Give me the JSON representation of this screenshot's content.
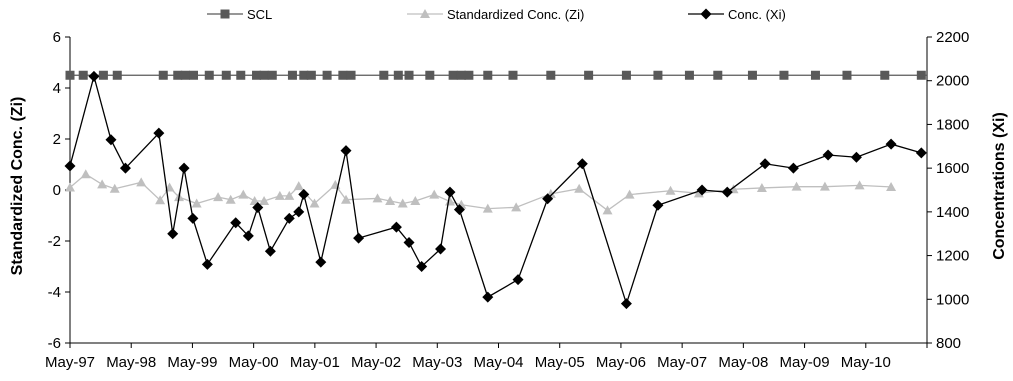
{
  "chart_data": {
    "type": "line",
    "legend_position": "top",
    "grid": false,
    "xlabel": "",
    "ylabel": "Standardized Conc. (Zi)",
    "y2label": "Concentrations (Xi)",
    "ylim": [
      -6,
      6
    ],
    "y2lim": [
      800,
      2200
    ],
    "x_ticks": [
      "May-97",
      "May-98",
      "May-99",
      "May-00",
      "May-01",
      "May-02",
      "May-03",
      "May-04",
      "May-05",
      "May-06",
      "May-07",
      "May-08",
      "May-09",
      "May-10"
    ],
    "y_ticks": [
      -6,
      -4,
      -2,
      0,
      2,
      4,
      6
    ],
    "y2_ticks": [
      800,
      1000,
      1200,
      1400,
      1600,
      1800,
      2000,
      2200
    ],
    "x_start": 1997.37,
    "x_end": 2010.97,
    "series": [
      {
        "name": "SCL",
        "axis": "left",
        "color": "#595959",
        "marker": "square",
        "x": [
          1997.37,
          1997.58,
          1997.9,
          1998.12,
          1998.85,
          1999.08,
          1999.2,
          1999.33,
          1999.58,
          1999.85,
          2000.08,
          2000.33,
          2000.45,
          2000.58,
          2000.9,
          2001.08,
          2001.2,
          2001.45,
          2001.7,
          2001.83,
          2002.35,
          2002.58,
          2002.75,
          2003.08,
          2003.45,
          2003.58,
          2003.7,
          2004.0,
          2004.4,
          2005.0,
          2005.6,
          2006.2,
          2006.7,
          2007.2,
          2007.65,
          2008.2,
          2008.7,
          2009.2,
          2009.7,
          2010.3,
          2010.88
        ],
        "y": [
          4.5,
          4.5,
          4.5,
          4.5,
          4.5,
          4.5,
          4.5,
          4.5,
          4.5,
          4.5,
          4.5,
          4.5,
          4.5,
          4.5,
          4.5,
          4.5,
          4.5,
          4.5,
          4.5,
          4.5,
          4.5,
          4.5,
          4.5,
          4.5,
          4.5,
          4.5,
          4.5,
          4.5,
          4.5,
          4.5,
          4.5,
          4.5,
          4.5,
          4.5,
          4.5,
          4.5,
          4.5,
          4.5,
          4.5,
          4.5,
          4.5
        ]
      },
      {
        "name": "Standardized Conc. (Zi)",
        "axis": "left",
        "color": "#bfbfbf",
        "marker": "triangle",
        "x": [
          1997.37,
          1997.62,
          1997.88,
          1998.08,
          1998.5,
          1998.8,
          1998.95,
          1999.1,
          1999.38,
          1999.72,
          1999.92,
          2000.12,
          2000.3,
          2000.45,
          2000.7,
          2000.85,
          2001.0,
          2001.25,
          2001.58,
          2001.75,
          2002.25,
          2002.45,
          2002.65,
          2002.85,
          2003.15,
          2003.4,
          2003.58,
          2004.0,
          2004.45,
          2005.0,
          2005.45,
          2005.9,
          2006.25,
          2006.9,
          2007.35,
          2007.9,
          2008.35,
          2008.9,
          2009.35,
          2009.9,
          2010.4
        ],
        "y": [
          0.1,
          0.62,
          0.22,
          0.05,
          0.3,
          -0.4,
          0.1,
          -0.28,
          -0.53,
          -0.28,
          -0.38,
          -0.18,
          -0.43,
          -0.43,
          -0.23,
          -0.23,
          0.15,
          -0.53,
          0.2,
          -0.38,
          -0.33,
          -0.43,
          -0.53,
          -0.43,
          -0.18,
          -0.45,
          -0.58,
          -0.73,
          -0.68,
          -0.15,
          0.05,
          -0.8,
          -0.18,
          -0.03,
          -0.13,
          0.03,
          0.08,
          0.13,
          0.13,
          0.18,
          0.12
        ]
      },
      {
        "name": "Conc. (Xi)",
        "axis": "right",
        "color": "#000000",
        "marker": "diamond",
        "x": [
          1997.37,
          1997.75,
          1998.02,
          1998.25,
          1998.78,
          1999.0,
          1999.18,
          1999.32,
          1999.55,
          2000.0,
          2000.2,
          2000.35,
          2000.55,
          2000.85,
          2001.0,
          2001.08,
          2001.35,
          2001.75,
          2001.95,
          2002.55,
          2002.75,
          2002.95,
          2003.25,
          2003.4,
          2003.55,
          2004.0,
          2004.48,
          2004.95,
          2005.5,
          2006.2,
          2006.7,
          2007.4,
          2007.8,
          2008.4,
          2008.85,
          2009.4,
          2009.85,
          2010.4,
          2010.88
        ],
        "y": [
          1610,
          2020,
          1730,
          1600,
          1760,
          1300,
          1600,
          1370,
          1160,
          1350,
          1290,
          1420,
          1220,
          1370,
          1400,
          1480,
          1170,
          1680,
          1280,
          1330,
          1260,
          1150,
          1230,
          1490,
          1410,
          1010,
          1090,
          1460,
          1620,
          980,
          1430,
          1500,
          1490,
          1620,
          1600,
          1660,
          1650,
          1710,
          1670
        ]
      }
    ]
  }
}
